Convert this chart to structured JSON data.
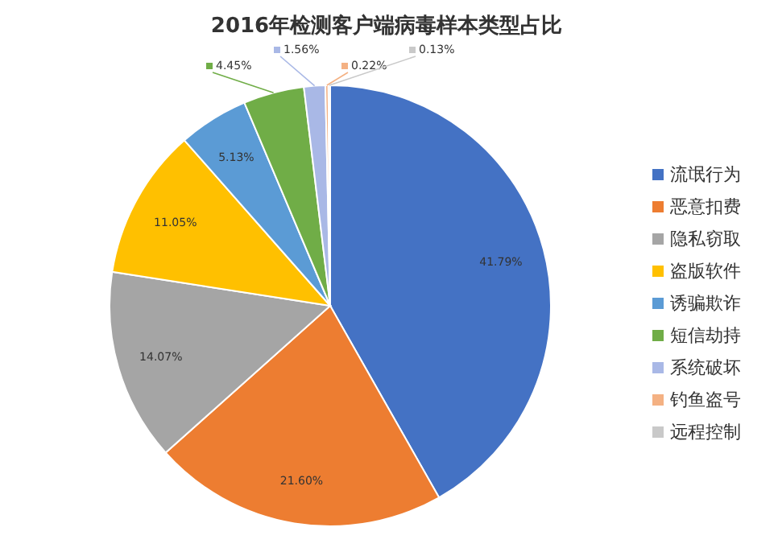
{
  "chart_data": {
    "type": "pie",
    "title": "2016年检测客户端病毒样本类型占比",
    "categories": [
      "流氓行为",
      "恶意扣费",
      "隐私窃取",
      "盗版软件",
      "诱骗欺诈",
      "短信劫持",
      "系统破坏",
      "钓鱼盗号",
      "远程控制"
    ],
    "values": [
      41.79,
      21.6,
      14.07,
      11.05,
      5.13,
      4.45,
      1.56,
      0.22,
      0.13
    ],
    "value_labels": [
      "41.79%",
      "21.60%",
      "14.07%",
      "11.05%",
      "5.13%",
      "4.45%",
      "1.56%",
      "0.22%",
      "0.13%"
    ],
    "colors": [
      "#4472c4",
      "#ed7d31",
      "#a5a5a5",
      "#ffc000",
      "#5b9bd5",
      "#70ad47",
      "#a9b8e6",
      "#f4b183",
      "#c9c9c9"
    ],
    "legend": "right"
  }
}
